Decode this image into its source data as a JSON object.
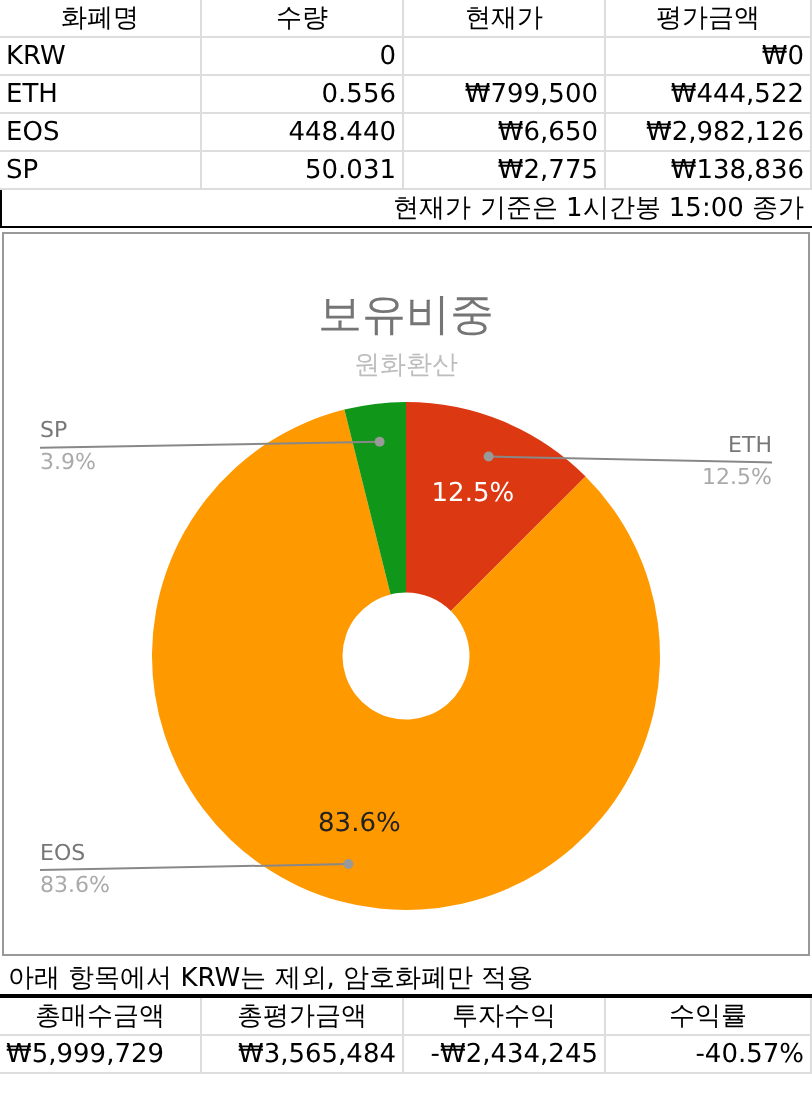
{
  "chart_data": [
    {
      "type": "other",
      "subtitle": "현재가 기준은 1시간봉 15:00 종가",
      "annotations": [
        "화폐명",
        "수량",
        "현재가",
        "평가금액",
        "KRW",
        "0",
        null,
        "₩0",
        "ETH",
        "0.556",
        "₩799,500",
        "₩444,522",
        "EOS",
        "448.440",
        "₩6,650",
        "₩2,982,126",
        "SP",
        "50.031",
        "₩2,775",
        "₩138,836"
      ]
    },
    {
      "type": "donut",
      "title": "보유비중",
      "subtitle": "원화환산",
      "categories": [
        "ETH",
        "EOS",
        "SP"
      ],
      "values": [
        12.5,
        83.6,
        3.9
      ],
      "colors": [
        "#dc3912",
        "#ff9900",
        "#109618"
      ],
      "value_labels": [
        "12.5%",
        "83.6%",
        "3.9%"
      ],
      "legend": false
    },
    {
      "type": "other",
      "title": "아래 항목에서 KRW는 제외, 암호화폐만 적용",
      "annotations": [
        "총매수금액",
        "총평가금액",
        "투자수익",
        "수익률",
        "₩5,999,729",
        "₩3,565,484",
        "-₩2,434,245",
        "-40.57%"
      ]
    }
  ]
}
